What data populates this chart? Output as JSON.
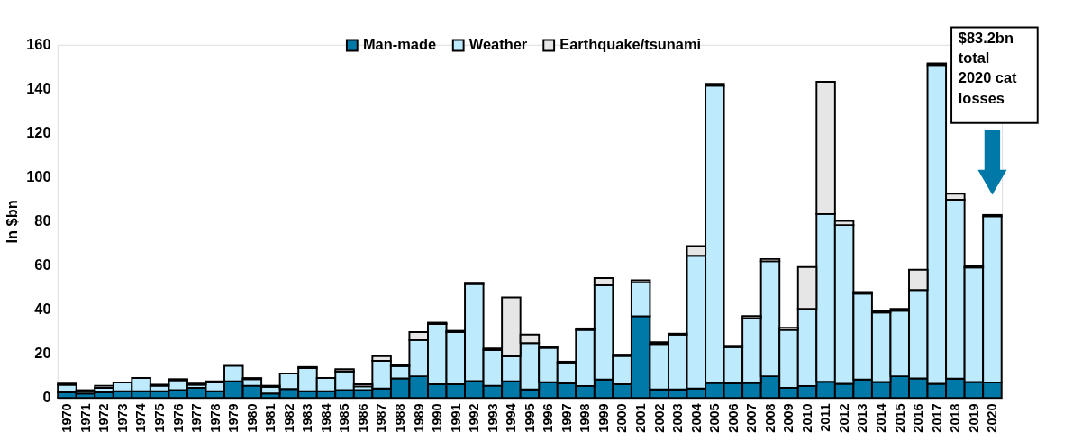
{
  "chart_data": {
    "type": "bar",
    "stacked": true,
    "ylabel": "In $bn",
    "ylim": [
      0,
      160
    ],
    "yticks": [
      0,
      20,
      40,
      60,
      80,
      100,
      120,
      140,
      160
    ],
    "grid": false,
    "legend": "top",
    "categories": [
      "1970",
      "1971",
      "1972",
      "1973",
      "1974",
      "1975",
      "1976",
      "1977",
      "1978",
      "1979",
      "1980",
      "1981",
      "1982",
      "1983",
      "1984",
      "1985",
      "1986",
      "1987",
      "1988",
      "1989",
      "1990",
      "1991",
      "1992",
      "1993",
      "1994",
      "1995",
      "1996",
      "1997",
      "1998",
      "1999",
      "2000",
      "2001",
      "2002",
      "2003",
      "2004",
      "2005",
      "2006",
      "2007",
      "2008",
      "2009",
      "2010",
      "2011",
      "2012",
      "2013",
      "2014",
      "2015",
      "2016",
      "2017",
      "2018",
      "2019",
      "2020"
    ],
    "series": [
      {
        "name": "Man-made",
        "color": "#0079a8",
        "values": [
          2.5,
          2,
          2.5,
          3,
          3,
          3,
          3.5,
          4.5,
          3,
          7.5,
          5.5,
          2,
          4,
          3,
          3,
          3.5,
          3.5,
          4.2,
          8.8,
          9.8,
          6.2,
          6.2,
          7.6,
          5.5,
          7.5,
          3.8,
          7.1,
          6.6,
          5.4,
          8.3,
          6.2,
          37,
          3.8,
          3.8,
          4.2,
          6.8,
          6.6,
          6.8,
          9.8,
          4.5,
          5.4,
          7.3,
          6.4,
          8.3,
          7.2,
          9.8,
          8.8,
          6.4,
          8.7,
          7.2,
          7
        ]
      },
      {
        "name": "Weather",
        "color": "#bdeafc",
        "values": [
          3.5,
          1,
          2,
          4,
          6,
          2.5,
          4.5,
          1.5,
          4,
          7,
          3,
          3,
          7,
          10.5,
          6,
          8.5,
          1.7,
          12.6,
          5.6,
          16.4,
          27.3,
          23.6,
          44,
          16.2,
          11.3,
          21,
          15.6,
          9.4,
          25.4,
          42.7,
          12.8,
          15.2,
          20.6,
          24.9,
          60.2,
          134.7,
          16.4,
          29.3,
          52.1,
          26.3,
          34.9,
          76,
          71.9,
          38.9,
          31.5,
          29.7,
          40.1,
          144.4,
          81.1,
          51.9,
          75.3
        ]
      },
      {
        "name": "Earthquake/tsunami",
        "color": "#e6e6e6",
        "values": [
          0.5,
          0.5,
          1,
          0,
          0,
          0.5,
          0.5,
          0.5,
          0.5,
          0,
          0.5,
          0.5,
          0,
          0.5,
          0,
          1,
          1,
          2.1,
          0.7,
          3.6,
          0.6,
          0.6,
          0.6,
          0.7,
          26.7,
          3.9,
          0.5,
          0.4,
          0.7,
          3.3,
          0.6,
          1.1,
          0.8,
          0.4,
          4.4,
          0.8,
          0.6,
          1,
          1,
          1,
          19,
          59.9,
          1.9,
          0.8,
          0.7,
          0.8,
          9.2,
          0.8,
          2.7,
          0.7,
          0.6
        ]
      }
    ],
    "annotations": [
      "$83.2bn total 2020 cat losses"
    ]
  }
}
